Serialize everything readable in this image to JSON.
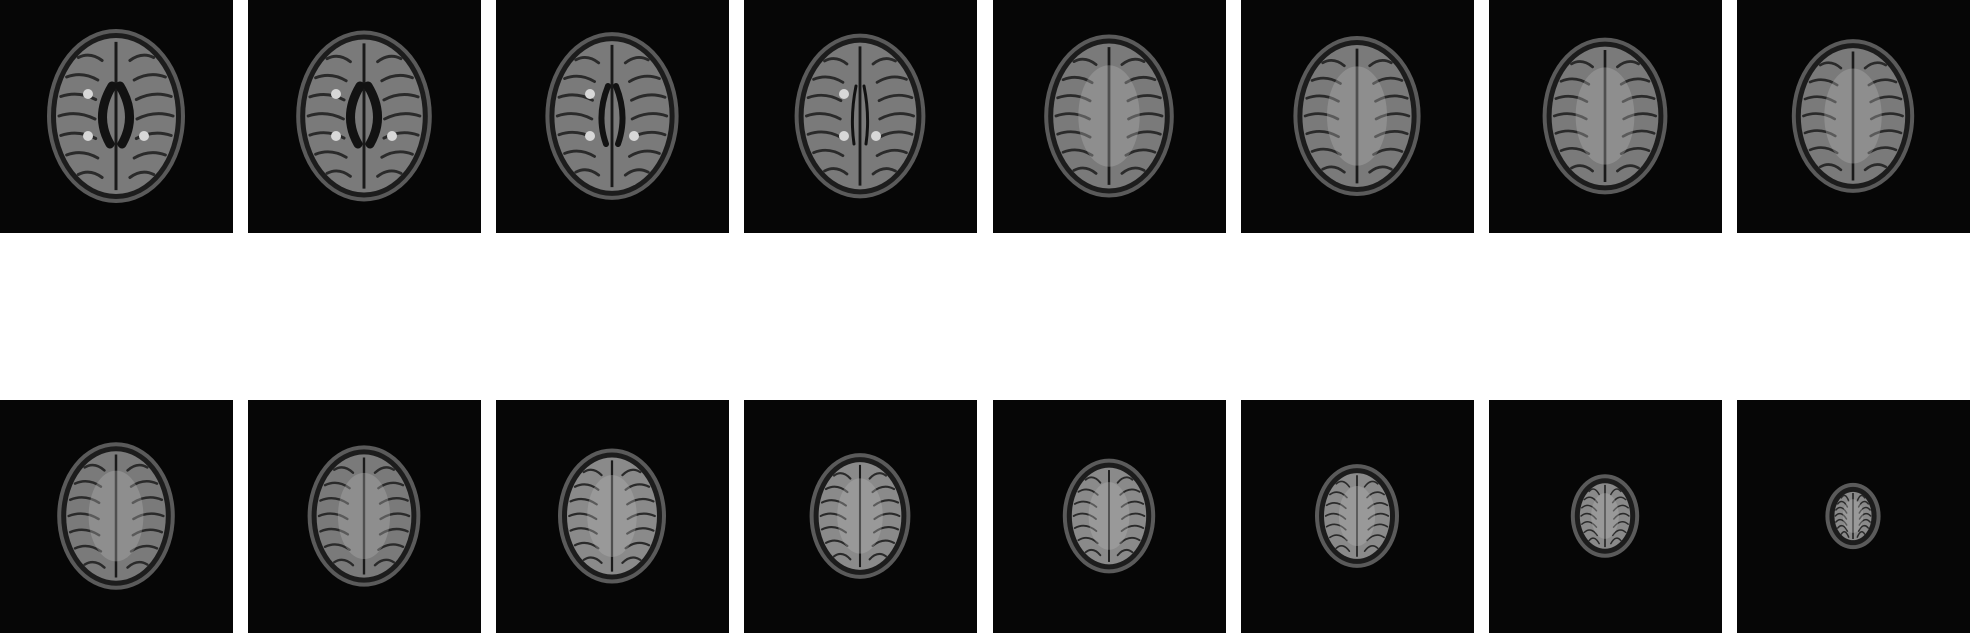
{
  "figure": {
    "background_color": "#ffffff",
    "panel_color": "#060606",
    "description_rows": 2,
    "panels_per_row": 8
  },
  "slices": [
    {
      "index": 1,
      "scale": 1.0,
      "stage": "ventricles"
    },
    {
      "index": 2,
      "scale": 0.98,
      "stage": "ventricles"
    },
    {
      "index": 3,
      "scale": 0.96,
      "stage": "ventricles-narrow"
    },
    {
      "index": 4,
      "scale": 0.94,
      "stage": "ventricles-thin"
    },
    {
      "index": 5,
      "scale": 0.93,
      "stage": "gyri"
    },
    {
      "index": 6,
      "scale": 0.91,
      "stage": "gyri"
    },
    {
      "index": 7,
      "scale": 0.89,
      "stage": "gyri"
    },
    {
      "index": 8,
      "scale": 0.87,
      "stage": "gyri"
    },
    {
      "index": 9,
      "scale": 0.83,
      "stage": "gyri-dense"
    },
    {
      "index": 10,
      "scale": 0.79,
      "stage": "gyri-dense"
    },
    {
      "index": 11,
      "scale": 0.75,
      "stage": "vertex"
    },
    {
      "index": 12,
      "scale": 0.69,
      "stage": "vertex"
    },
    {
      "index": 13,
      "scale": 0.62,
      "stage": "vertex-small"
    },
    {
      "index": 14,
      "scale": 0.55,
      "stage": "vertex-small"
    },
    {
      "index": 15,
      "scale": 0.42,
      "stage": "vertex-tip"
    },
    {
      "index": 16,
      "scale": 0.31,
      "stage": "vertex-tip"
    }
  ]
}
